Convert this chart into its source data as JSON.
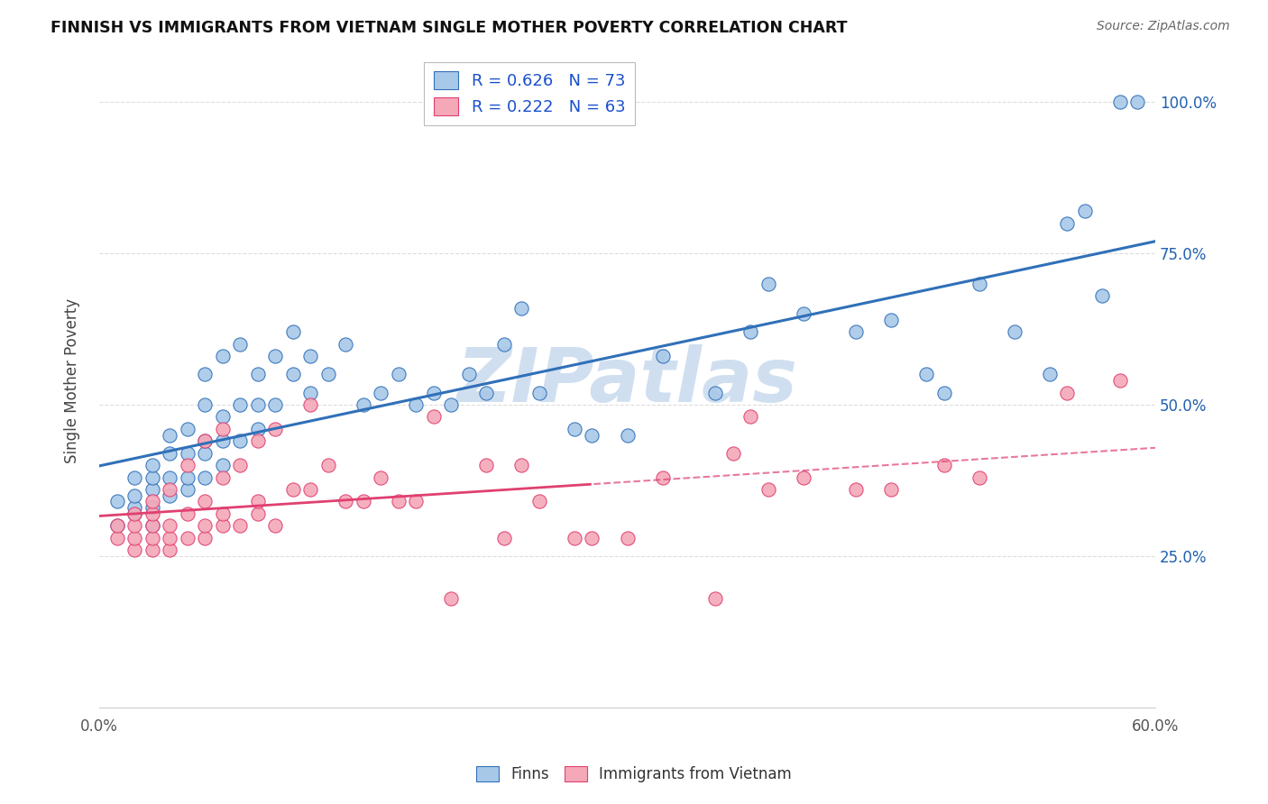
{
  "title": "FINNISH VS IMMIGRANTS FROM VIETNAM SINGLE MOTHER POVERTY CORRELATION CHART",
  "source": "Source: ZipAtlas.com",
  "ylabel": "Single Mother Poverty",
  "ytick_labels": [
    "25.0%",
    "50.0%",
    "75.0%",
    "100.0%"
  ],
  "ytick_values": [
    0.25,
    0.5,
    0.75,
    1.0
  ],
  "xlim": [
    0.0,
    0.6
  ],
  "ylim": [
    0.0,
    1.08
  ],
  "legend_r_blue": "R = 0.626",
  "legend_n_blue": "N = 73",
  "legend_r_pink": "R = 0.222",
  "legend_n_pink": "N = 63",
  "blue_color": "#a8c8e8",
  "pink_color": "#f4a8b8",
  "line_blue_color": "#3070b8",
  "line_pink_color": "#e04070",
  "watermark": "ZIPatlas",
  "watermark_color": "#d0dff0",
  "background_color": "#ffffff",
  "blue_scatter_x": [
    0.01,
    0.01,
    0.02,
    0.02,
    0.02,
    0.02,
    0.03,
    0.03,
    0.03,
    0.03,
    0.03,
    0.04,
    0.04,
    0.04,
    0.04,
    0.05,
    0.05,
    0.05,
    0.05,
    0.06,
    0.06,
    0.06,
    0.06,
    0.06,
    0.07,
    0.07,
    0.07,
    0.07,
    0.08,
    0.08,
    0.08,
    0.09,
    0.09,
    0.09,
    0.1,
    0.1,
    0.11,
    0.11,
    0.12,
    0.12,
    0.13,
    0.14,
    0.15,
    0.16,
    0.17,
    0.18,
    0.19,
    0.2,
    0.21,
    0.22,
    0.23,
    0.24,
    0.25,
    0.27,
    0.28,
    0.3,
    0.32,
    0.35,
    0.37,
    0.38,
    0.4,
    0.43,
    0.45,
    0.47,
    0.48,
    0.5,
    0.52,
    0.54,
    0.55,
    0.56,
    0.57,
    0.58,
    0.59
  ],
  "blue_scatter_y": [
    0.3,
    0.34,
    0.32,
    0.33,
    0.35,
    0.38,
    0.3,
    0.33,
    0.36,
    0.38,
    0.4,
    0.35,
    0.38,
    0.42,
    0.45,
    0.36,
    0.38,
    0.42,
    0.46,
    0.38,
    0.42,
    0.44,
    0.5,
    0.55,
    0.4,
    0.44,
    0.48,
    0.58,
    0.44,
    0.5,
    0.6,
    0.46,
    0.5,
    0.55,
    0.5,
    0.58,
    0.55,
    0.62,
    0.52,
    0.58,
    0.55,
    0.6,
    0.5,
    0.52,
    0.55,
    0.5,
    0.52,
    0.5,
    0.55,
    0.52,
    0.6,
    0.66,
    0.52,
    0.46,
    0.45,
    0.45,
    0.58,
    0.52,
    0.62,
    0.7,
    0.65,
    0.62,
    0.64,
    0.55,
    0.52,
    0.7,
    0.62,
    0.55,
    0.8,
    0.82,
    0.68,
    1.0,
    1.0
  ],
  "pink_scatter_x": [
    0.01,
    0.01,
    0.02,
    0.02,
    0.02,
    0.02,
    0.03,
    0.03,
    0.03,
    0.03,
    0.03,
    0.04,
    0.04,
    0.04,
    0.04,
    0.05,
    0.05,
    0.05,
    0.06,
    0.06,
    0.06,
    0.06,
    0.07,
    0.07,
    0.07,
    0.07,
    0.08,
    0.08,
    0.09,
    0.09,
    0.09,
    0.1,
    0.1,
    0.11,
    0.12,
    0.12,
    0.13,
    0.14,
    0.15,
    0.16,
    0.17,
    0.18,
    0.19,
    0.2,
    0.22,
    0.23,
    0.24,
    0.25,
    0.27,
    0.28,
    0.3,
    0.32,
    0.35,
    0.36,
    0.37,
    0.38,
    0.4,
    0.43,
    0.45,
    0.48,
    0.5,
    0.55,
    0.58
  ],
  "pink_scatter_y": [
    0.28,
    0.3,
    0.26,
    0.28,
    0.3,
    0.32,
    0.26,
    0.28,
    0.3,
    0.32,
    0.34,
    0.26,
    0.28,
    0.3,
    0.36,
    0.28,
    0.32,
    0.4,
    0.28,
    0.3,
    0.34,
    0.44,
    0.3,
    0.32,
    0.38,
    0.46,
    0.3,
    0.4,
    0.32,
    0.34,
    0.44,
    0.3,
    0.46,
    0.36,
    0.36,
    0.5,
    0.4,
    0.34,
    0.34,
    0.38,
    0.34,
    0.34,
    0.48,
    0.18,
    0.4,
    0.28,
    0.4,
    0.34,
    0.28,
    0.28,
    0.28,
    0.38,
    0.18,
    0.42,
    0.48,
    0.36,
    0.38,
    0.36,
    0.36,
    0.4,
    0.38,
    0.52,
    0.54
  ],
  "grid_color": "#dddddd",
  "grid_linestyle": "--",
  "spine_color": "#cccccc"
}
